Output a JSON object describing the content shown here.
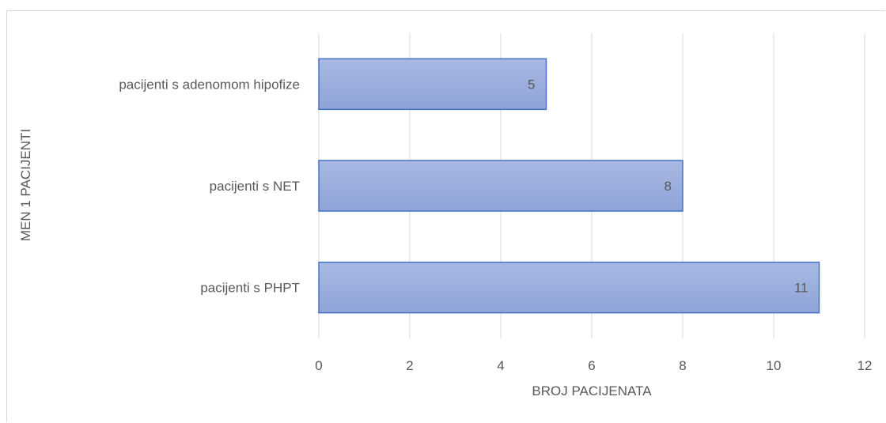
{
  "chart_data": {
    "type": "bar",
    "orientation": "horizontal",
    "categories": [
      "pacijenti s adenomom hipofize",
      "pacijenti s NET",
      "pacijenti s PHPT"
    ],
    "values": [
      5,
      8,
      11
    ],
    "data_labels": [
      "5",
      "8",
      "11"
    ],
    "title": "",
    "xlabel": "BROJ PACIJENATA",
    "ylabel": "MEN 1 PACIJENTI",
    "xlim": [
      0,
      12
    ],
    "x_ticks": [
      0,
      2,
      4,
      6,
      8,
      10,
      12
    ],
    "x_tick_labels": [
      "0",
      "2",
      "4",
      "6",
      "8",
      "10",
      "12"
    ],
    "grid": "vertical",
    "legend": "none",
    "colors": {
      "bar_fill_light": "#a9b9e3",
      "bar_fill_dark": "#8fa3d8",
      "bar_stroke": "#4472c4",
      "gridline": "#d9d9d9",
      "text": "#595959"
    }
  }
}
